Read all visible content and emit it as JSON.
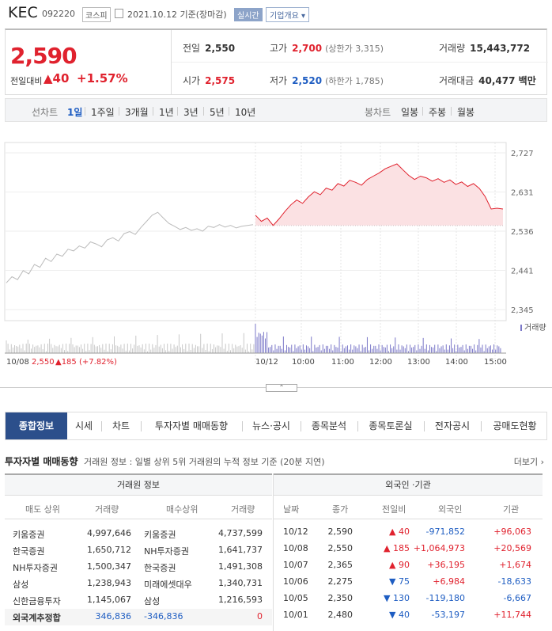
{
  "header": {
    "name": "KEC",
    "code": "092220",
    "market": "코스피",
    "date_text": "2021.10.12 기준(장마감)",
    "live_label": "실시간",
    "company_button": "기업개요 ▾"
  },
  "price": {
    "current": "2,590",
    "change_label": "전일대비",
    "change_value": "▲40",
    "change_pct": "+1.57%",
    "prev_label": "전일",
    "prev": "2,550",
    "high_label": "고가",
    "high": "2,700",
    "upper_limit": "(상한가 3,315)",
    "volume_label": "거래량",
    "volume": "15,443,772",
    "open_label": "시가",
    "open": "2,575",
    "low_label": "저가",
    "low": "2,520",
    "lower_limit": "(하한가 1,785)",
    "amount_label": "거래대금",
    "amount": "40,477 백만"
  },
  "period_bar": {
    "line_label": "선차트",
    "line_items": [
      "1일",
      "1주일",
      "3개월",
      "1년",
      "3년",
      "5년",
      "10년"
    ],
    "candle_label": "봉차트",
    "candle_items": [
      "일봉",
      "주봉",
      "월봉"
    ]
  },
  "chart_data": {
    "type": "line",
    "y_ticks": [
      "2,727",
      "2,631",
      "2,536",
      "2,441",
      "2,345"
    ],
    "x_ticks": [
      "10/12",
      "10:00",
      "11:00",
      "12:00",
      "13:00",
      "14:00",
      "15:00"
    ],
    "volume_label": "거래량",
    "prev_day_label": "10/08",
    "prev_day_price": "2,550",
    "prev_day_change": "▲185",
    "prev_day_pct": "(+7.82%)",
    "prev_close": 2550,
    "ylim": [
      2345,
      2727
    ],
    "prev_day_series": [
      2410,
      2425,
      2418,
      2440,
      2432,
      2455,
      2448,
      2470,
      2462,
      2480,
      2475,
      2492,
      2488,
      2500,
      2495,
      2510,
      2505,
      2498,
      2515,
      2520,
      2512,
      2530,
      2535,
      2528,
      2545,
      2560,
      2575,
      2582,
      2568,
      2555,
      2548,
      2540,
      2545,
      2538,
      2542,
      2536,
      2548,
      2545,
      2552,
      2546,
      2550,
      2544,
      2548,
      2550,
      2552
    ],
    "today_series": [
      2575,
      2560,
      2568,
      2550,
      2566,
      2584,
      2600,
      2612,
      2604,
      2620,
      2632,
      2625,
      2641,
      2636,
      2652,
      2646,
      2660,
      2655,
      2648,
      2662,
      2670,
      2678,
      2688,
      2694,
      2700,
      2686,
      2672,
      2662,
      2670,
      2666,
      2658,
      2664,
      2655,
      2661,
      2650,
      2656,
      2645,
      2652,
      2640,
      2620,
      2590,
      2592,
      2590
    ],
    "today_colors": [
      "red"
    ],
    "grid": true,
    "legend": "top-right"
  },
  "expand_label": "⌃",
  "tabs": [
    "종합정보",
    "시세",
    "차트",
    "투자자별 매매동향",
    "뉴스·공시",
    "종목분석",
    "종목토론실",
    "전자공시",
    "공매도현황"
  ],
  "section": {
    "title": "투자자별 매매동향",
    "desc": "거래원 정보 : 일별 상위 5위 거래원의 누적 정보 기준 (20분 지연)",
    "more": "더보기 ›"
  },
  "broker_table": {
    "title": "거래원 정보",
    "headers": [
      "매도 상위",
      "거래량",
      "매수상위",
      "거래량"
    ],
    "rows": [
      [
        "키움증권",
        "4,997,646",
        "키움증권",
        "4,737,599"
      ],
      [
        "한국증권",
        "1,650,712",
        "NH투자증권",
        "1,641,737"
      ],
      [
        "NH투자증권",
        "1,500,347",
        "한국증권",
        "1,491,308"
      ],
      [
        "삼성",
        "1,238,943",
        "미래에셋대우",
        "1,340,731"
      ],
      [
        "신한금융투자",
        "1,145,067",
        "삼성",
        "1,216,593"
      ]
    ],
    "sum_row": [
      "외국계추정합",
      "346,836",
      "-346,836",
      "0"
    ]
  },
  "foreign_table": {
    "title": "외국인 ·기관",
    "headers": [
      "날짜",
      "종가",
      "전일비",
      "외국인",
      "기관"
    ],
    "rows": [
      [
        "10/12",
        "2,590",
        "▲ 40",
        "-971,852",
        "+96,063"
      ],
      [
        "10/08",
        "2,550",
        "▲ 185",
        "+1,064,973",
        "+20,569"
      ],
      [
        "10/07",
        "2,365",
        "▲ 90",
        "+36,195",
        "+1,674"
      ],
      [
        "10/06",
        "2,275",
        "▼ 75",
        "+6,984",
        "-18,633"
      ],
      [
        "10/05",
        "2,350",
        "▼ 130",
        "-119,180",
        "-6,667"
      ],
      [
        "10/01",
        "2,480",
        "▼ 40",
        "-53,197",
        "+11,744"
      ]
    ]
  }
}
